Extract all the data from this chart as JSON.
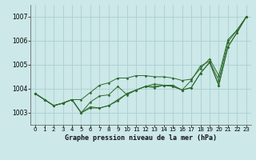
{
  "title": "Graphe pression niveau de la mer (hPa)",
  "bg_color": "#cce8e8",
  "grid_color": "#aad0d0",
  "line_color": "#2d6a2d",
  "marker_color": "#2d6a2d",
  "xlim": [
    -0.5,
    23.5
  ],
  "ylim": [
    1002.5,
    1007.5
  ],
  "yticks": [
    1003,
    1004,
    1005,
    1006,
    1007
  ],
  "xticks": [
    0,
    1,
    2,
    3,
    4,
    5,
    6,
    7,
    8,
    9,
    10,
    11,
    12,
    13,
    14,
    15,
    16,
    17,
    18,
    19,
    20,
    21,
    22,
    23
  ],
  "series": [
    [
      1003.8,
      1003.55,
      1003.3,
      1003.4,
      1003.55,
      1003.0,
      1003.2,
      1003.2,
      1003.3,
      1003.5,
      1003.8,
      1003.95,
      1004.1,
      1004.1,
      1004.15,
      1004.1,
      1003.95,
      1004.05,
      1004.65,
      1005.1,
      1004.15,
      1005.75,
      1006.35,
      1007.0
    ],
    [
      1003.8,
      1003.55,
      1003.3,
      1003.4,
      1003.55,
      1003.0,
      1003.25,
      1003.2,
      1003.3,
      1003.55,
      1003.8,
      1003.95,
      1004.1,
      1004.2,
      1004.15,
      1004.15,
      1003.95,
      1004.35,
      1004.95,
      1005.15,
      1004.35,
      1005.95,
      1006.45,
      1007.0
    ],
    [
      1003.8,
      1003.55,
      1003.3,
      1003.4,
      1003.55,
      1003.0,
      1003.45,
      1003.7,
      1003.75,
      1004.1,
      1003.75,
      1003.95,
      1004.1,
      1004.05,
      1004.15,
      1004.1,
      1003.95,
      1004.05,
      1004.65,
      1005.1,
      1004.15,
      1005.75,
      1006.35,
      1007.0
    ],
    [
      1003.8,
      1003.55,
      1003.3,
      1003.4,
      1003.55,
      1003.55,
      1003.85,
      1004.15,
      1004.25,
      1004.45,
      1004.45,
      1004.55,
      1004.55,
      1004.5,
      1004.5,
      1004.45,
      1004.35,
      1004.4,
      1004.85,
      1005.25,
      1004.55,
      1006.05,
      1006.45,
      1007.0
    ]
  ]
}
